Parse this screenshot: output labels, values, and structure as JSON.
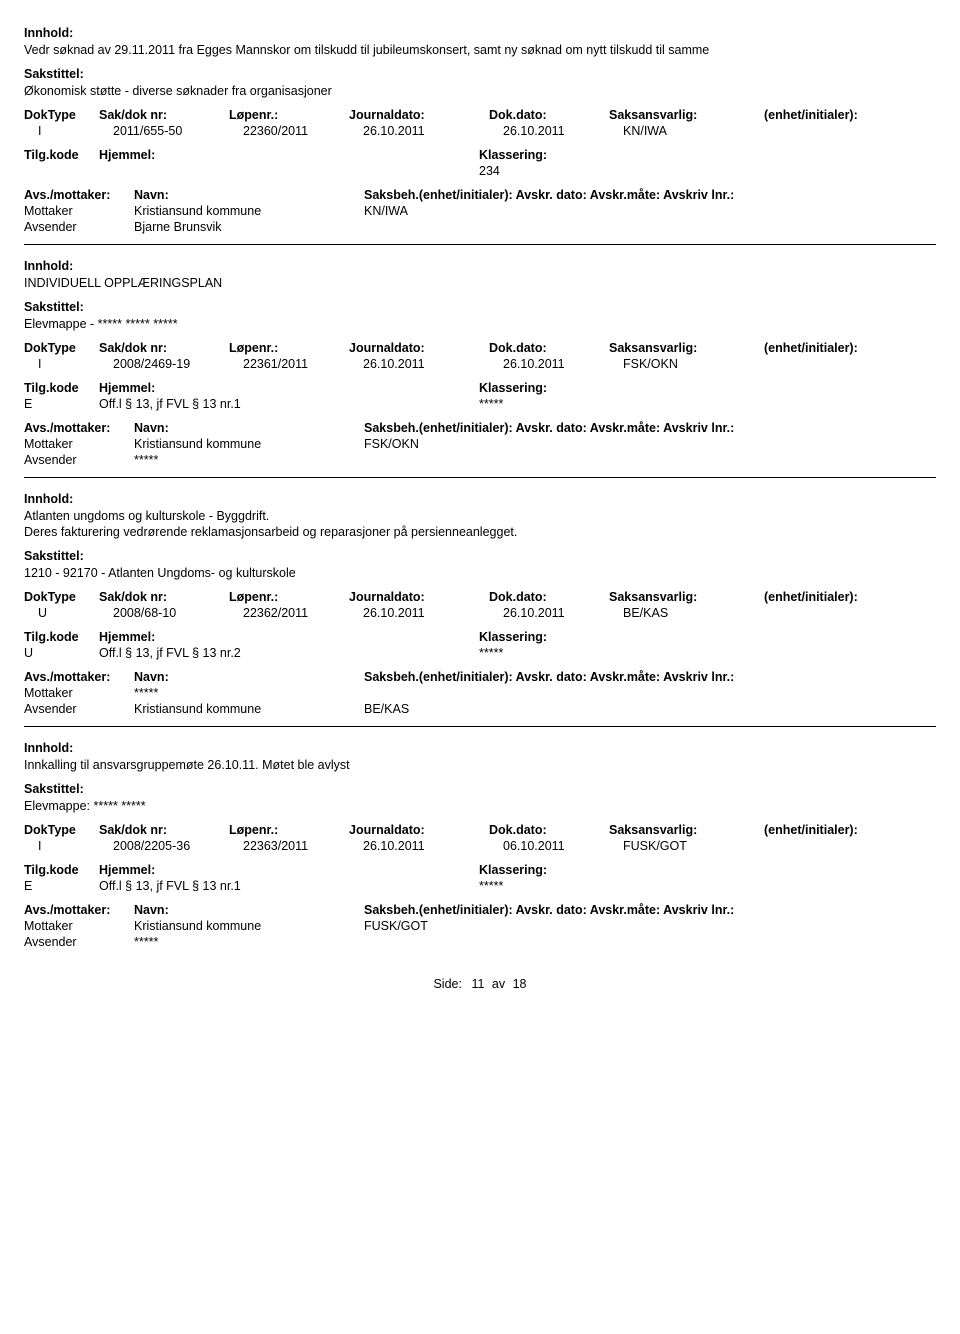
{
  "labels": {
    "innhold": "Innhold:",
    "sakstittel": "Sakstittel:",
    "doktype": "DokType",
    "sakdok": "Sak/dok nr:",
    "lopenr": "Løpenr.:",
    "journaldato": "Journaldato:",
    "dokdato": "Dok.dato:",
    "saksansvarlig": "Saksansvarlig:",
    "enhet": "(enhet/initialer):",
    "tilgkode": "Tilg.kode",
    "hjemmel": "Hjemmel:",
    "klassering": "Klassering:",
    "avsmottaker": "Avs./mottaker:",
    "navn": "Navn:",
    "saksbeh_line": "Saksbeh.(enhet/initialer): Avskr. dato:  Avskr.måte:  Avskriv lnr.:",
    "mottaker": "Mottaker",
    "avsender": "Avsender",
    "side": "Side:",
    "av": "av"
  },
  "records": [
    {
      "content": "Vedr søknad av 29.11.2011 fra Egges Mannskor om tilskudd til jubileumskonsert, samt ny søknad om nytt tilskudd til samme",
      "casetitle": "Økonomisk støtte - diverse søknader fra organisasjoner",
      "doktype": "I",
      "sakdok": "2011/655-50",
      "lopenr": "22360/2011",
      "journaldato": "26.10.2011",
      "dokdato": "26.10.2011",
      "saksansvarlig": "KN/IWA",
      "tilgkode": "",
      "hjemmel": "",
      "klassering": "234",
      "saksbeh_code": "KN/IWA",
      "mottaker": "Kristiansund kommune",
      "avsender": "Bjarne Brunsvik"
    },
    {
      "content": "INDIVIDUELL OPPLÆRINGSPLAN",
      "casetitle": "Elevmappe - ***** ***** *****",
      "doktype": "I",
      "sakdok": "2008/2469-19",
      "lopenr": "22361/2011",
      "journaldato": "26.10.2011",
      "dokdato": "26.10.2011",
      "saksansvarlig": "FSK/OKN",
      "tilgkode": "E",
      "hjemmel": "Off.l § 13, jf FVL § 13 nr.1",
      "klassering": "*****",
      "saksbeh_code": "FSK/OKN",
      "mottaker": "Kristiansund kommune",
      "avsender": "*****"
    },
    {
      "content": "Atlanten ungdoms og kulturskole - Byggdrift.\nDeres fakturering vedrørende reklamasjonsarbeid og reparasjoner på persienneanlegget.",
      "casetitle": "1210 - 92170 - Atlanten Ungdoms- og kulturskole",
      "doktype": "U",
      "sakdok": "2008/68-10",
      "lopenr": "22362/2011",
      "journaldato": "26.10.2011",
      "dokdato": "26.10.2011",
      "saksansvarlig": "BE/KAS",
      "tilgkode": "U",
      "hjemmel": "Off.l § 13, jf FVL § 13 nr.2",
      "klassering": "*****",
      "saksbeh_code": "BE/KAS",
      "mottaker": "*****",
      "avsender": "Kristiansund kommune"
    },
    {
      "content": "Innkalling til ansvarsgruppemøte 26.10.11. Møtet ble avlyst",
      "casetitle": "Elevmappe: ***** *****",
      "doktype": "I",
      "sakdok": "2008/2205-36",
      "lopenr": "22363/2011",
      "journaldato": "26.10.2011",
      "dokdato": "06.10.2011",
      "saksansvarlig": "FUSK/GOT",
      "tilgkode": "E",
      "hjemmel": "Off.l § 13, jf FVL § 13 nr.1",
      "klassering": "*****",
      "saksbeh_code": "FUSK/GOT",
      "mottaker": "Kristiansund kommune",
      "avsender": "*****"
    }
  ],
  "page": {
    "current": "11",
    "total": "18"
  }
}
